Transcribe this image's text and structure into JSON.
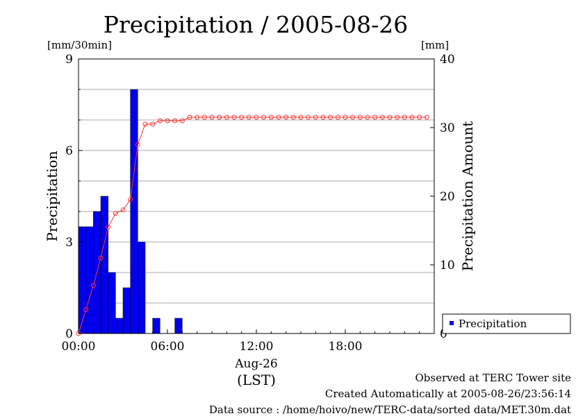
{
  "chart_data": {
    "type": "bar",
    "title": "Precipitation / 2005-08-26",
    "left_unit": "[mm/30min]",
    "right_unit": "[mm]",
    "ylabel": "Precipitation",
    "y2label": "Precipitation Amount",
    "ylim": [
      0,
      9
    ],
    "y2lim": [
      0,
      40
    ],
    "yticks": [
      "0",
      "3",
      "6",
      "9"
    ],
    "y2ticks": [
      "0",
      "10",
      "20",
      "30",
      "40"
    ],
    "xticks": [
      "00:00",
      "06:00",
      "12:00",
      "18:00"
    ],
    "xdate": "Aug-26",
    "xunit": "(LST)",
    "x_interval_minutes": 30,
    "legend": {
      "label": "Precipitation",
      "position": "bottom-right"
    },
    "bar_color": "#0000ee",
    "line_color": "#ff3333",
    "series": [
      {
        "name": "Precipitation",
        "kind": "bar",
        "values": [
          3.5,
          3.5,
          4.0,
          4.5,
          2.0,
          0.5,
          1.5,
          8.0,
          3.0,
          0,
          0.5,
          0,
          0,
          0.5,
          0,
          0,
          0,
          0,
          0,
          0,
          0,
          0,
          0,
          0,
          0,
          0,
          0,
          0,
          0,
          0,
          0,
          0,
          0,
          0,
          0,
          0,
          0,
          0,
          0,
          0,
          0,
          0,
          0,
          0,
          0,
          0,
          0,
          0
        ]
      },
      {
        "kind": "line",
        "values": [
          0,
          3.5,
          7.0,
          11.0,
          15.5,
          17.5,
          18.0,
          19.5,
          27.5,
          30.5,
          30.5,
          31.0,
          31.0,
          31.0,
          31.0,
          31.5,
          31.5,
          31.5,
          31.5,
          31.5,
          31.5,
          31.5,
          31.5,
          31.5,
          31.5,
          31.5,
          31.5,
          31.5,
          31.5,
          31.5,
          31.5,
          31.5,
          31.5,
          31.5,
          31.5,
          31.5,
          31.5,
          31.5,
          31.5,
          31.5,
          31.5,
          31.5,
          31.5,
          31.5,
          31.5,
          31.5,
          31.5,
          31.5
        ]
      }
    ]
  },
  "footer": {
    "line1": "Observed at TERC Tower site",
    "line2": "Created Automatically at 2005-08-26/23:56:14",
    "line3": "Data source : /home/hoivo/new/TERC-data/sorted  data/MET.30m.dat"
  }
}
